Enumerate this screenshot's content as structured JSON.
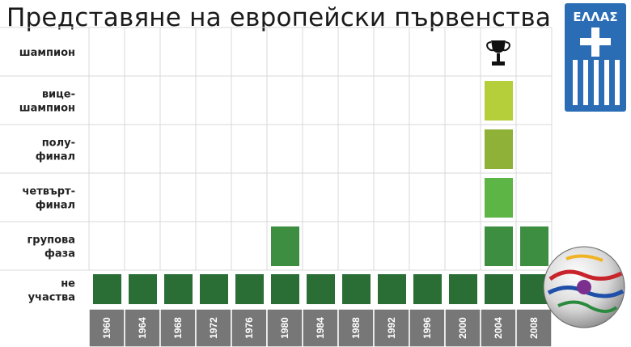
{
  "title": "Представяне на европейски първенства",
  "logo": {
    "text": "ΕΛΛΑΣ",
    "color": "#2a6db5"
  },
  "colors": {
    "participation": "#2a6e36",
    "group": "#3e8e41",
    "quarter": "#5db545",
    "semi": "#8fb138",
    "runnerup": "#b5cf3a",
    "year_bar": "#777777",
    "grid": "#d9d9d9"
  },
  "chart_data": {
    "type": "heatmap",
    "title": "Представяне на европейски първенства",
    "rows": [
      {
        "key": "champion",
        "lines": [
          "шампион"
        ]
      },
      {
        "key": "runnerup",
        "lines": [
          "вице-",
          "шампион"
        ]
      },
      {
        "key": "semi",
        "lines": [
          "полу-",
          "финал"
        ]
      },
      {
        "key": "quarter",
        "lines": [
          "четвърт-",
          "финал"
        ]
      },
      {
        "key": "group",
        "lines": [
          "групова",
          "фаза"
        ]
      },
      {
        "key": "participation",
        "lines": [
          "не",
          "участва"
        ]
      }
    ],
    "years": [
      "1960",
      "1964",
      "1968",
      "1972",
      "1976",
      "1980",
      "1984",
      "1988",
      "1992",
      "1996",
      "2000",
      "2004",
      "2008"
    ],
    "cells": [
      {
        "year": "1960",
        "stages": [
          "participation"
        ]
      },
      {
        "year": "1964",
        "stages": [
          "participation"
        ]
      },
      {
        "year": "1968",
        "stages": [
          "participation"
        ]
      },
      {
        "year": "1972",
        "stages": [
          "participation"
        ]
      },
      {
        "year": "1976",
        "stages": [
          "participation"
        ]
      },
      {
        "year": "1980",
        "stages": [
          "participation",
          "group"
        ]
      },
      {
        "year": "1984",
        "stages": [
          "participation"
        ]
      },
      {
        "year": "1988",
        "stages": [
          "participation"
        ]
      },
      {
        "year": "1992",
        "stages": [
          "participation"
        ]
      },
      {
        "year": "1996",
        "stages": [
          "participation"
        ]
      },
      {
        "year": "2000",
        "stages": [
          "participation"
        ]
      },
      {
        "year": "2004",
        "stages": [
          "participation",
          "group",
          "quarter",
          "semi",
          "runnerup"
        ],
        "trophy": true
      },
      {
        "year": "2008",
        "stages": [
          "participation",
          "group"
        ]
      }
    ]
  }
}
